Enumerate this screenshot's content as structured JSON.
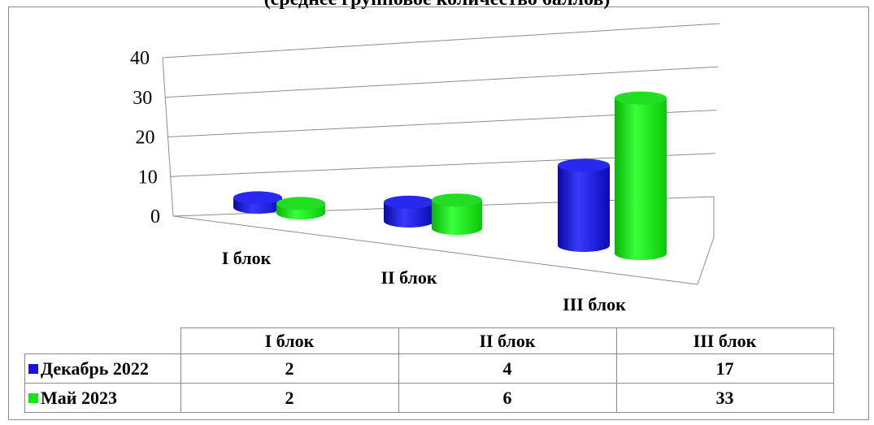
{
  "title": "(среднее групповое количество баллов)",
  "colors": {
    "series1": "#1414e6",
    "series2": "#14e614"
  },
  "chart_data": {
    "type": "bar",
    "style": "3d-cylinder",
    "categories": [
      "I блок",
      "II блок",
      "III блок"
    ],
    "series": [
      {
        "name": "Декабрь 2022",
        "values": [
          2,
          4,
          17
        ],
        "color": "#1414e6"
      },
      {
        "name": "Май 2023",
        "values": [
          2,
          6,
          33
        ],
        "color": "#14e614"
      }
    ],
    "yticks": [
      "0",
      "10",
      "20",
      "30",
      "40"
    ],
    "ylim": [
      0,
      40
    ],
    "grid": true,
    "legend": "data-table below plot"
  },
  "table": {
    "headers": [
      "I блок",
      "II блок",
      "III блок"
    ],
    "rows": [
      {
        "label": "Декабрь 2022",
        "values": [
          "2",
          "4",
          "17"
        ]
      },
      {
        "label": "Май 2023",
        "values": [
          "2",
          "6",
          "33"
        ]
      }
    ]
  }
}
